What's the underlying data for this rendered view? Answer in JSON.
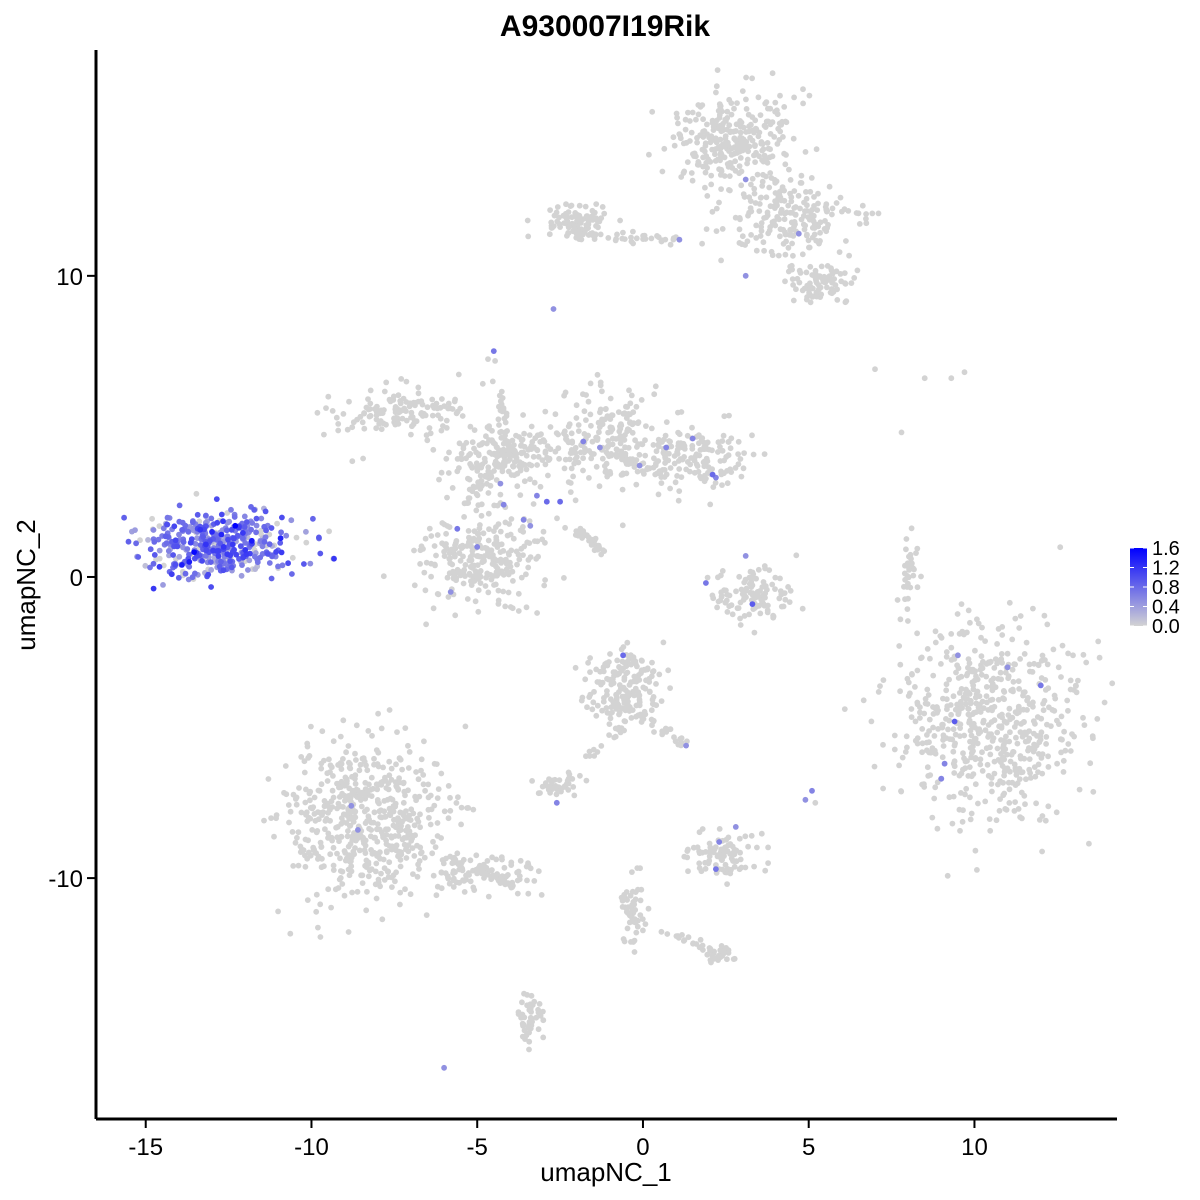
{
  "chart_data": {
    "type": "scatter",
    "title": "A930007I19Rik",
    "xlabel": "umapNC_1",
    "ylabel": "umapNC_2",
    "xlim": [
      -16.5,
      14.3
    ],
    "ylim": [
      -18.0,
      17.5
    ],
    "xticks": [
      -15,
      -10,
      -5,
      0,
      5,
      10
    ],
    "xtick_labels": [
      "-15",
      "-10",
      "-5",
      "0",
      "5",
      "10"
    ],
    "yticks": [
      10,
      0,
      -10
    ],
    "ytick_labels": [
      "10",
      "0",
      "-10"
    ],
    "color_scale": {
      "low": "#d3d3d3",
      "high": "#0000ff",
      "min": 0.0,
      "max": 1.6,
      "tick_values": [
        1.6,
        1.2,
        0.8,
        0.4,
        0.0
      ],
      "tick_labels": [
        "1.6",
        "1.2",
        "0.8",
        "0.4",
        "0.0"
      ]
    },
    "grid": false,
    "legend_position": "right",
    "clusters": [
      {
        "cx": -12.7,
        "cy": 1.1,
        "sx": 1.15,
        "sy": 0.55,
        "n": 440,
        "expr_frac": 0.88,
        "expr_mean": 0.7
      },
      {
        "cx": 2.7,
        "cy": 14.5,
        "sx": 0.9,
        "sy": 0.8,
        "n": 300,
        "expr_frac": 0.0,
        "expr_mean": 0
      },
      {
        "cx": 4.5,
        "cy": 12.0,
        "sx": 1.0,
        "sy": 0.6,
        "n": 200,
        "expr_frac": 0.0,
        "expr_mean": 0
      },
      {
        "cx": 5.3,
        "cy": 9.8,
        "sx": 0.5,
        "sy": 0.35,
        "n": 80,
        "expr_frac": 0.0,
        "expr_mean": 0
      },
      {
        "cx": -2.1,
        "cy": 11.8,
        "sx": 0.45,
        "sy": 0.3,
        "n": 90,
        "expr_frac": 0.0,
        "expr_mean": 0
      },
      {
        "cx": -7.3,
        "cy": 5.5,
        "sx": 0.9,
        "sy": 0.4,
        "n": 130,
        "expr_frac": 0.0,
        "expr_mean": 0
      },
      {
        "cx": -4.3,
        "cy": 4.0,
        "sx": 0.9,
        "sy": 0.6,
        "n": 190,
        "expr_frac": 0.0,
        "expr_mean": 0
      },
      {
        "cx": -1.2,
        "cy": 4.6,
        "sx": 1.1,
        "sy": 0.9,
        "n": 200,
        "expr_frac": 0.0,
        "expr_mean": 0
      },
      {
        "cx": 1.6,
        "cy": 3.9,
        "sx": 0.8,
        "sy": 0.55,
        "n": 140,
        "expr_frac": 0.0,
        "expr_mean": 0
      },
      {
        "cx": -4.9,
        "cy": 0.7,
        "sx": 0.9,
        "sy": 0.75,
        "n": 260,
        "expr_frac": 0.0,
        "expr_mean": 0
      },
      {
        "cx": 3.3,
        "cy": -0.7,
        "sx": 0.55,
        "sy": 0.45,
        "n": 110,
        "expr_frac": 0.0,
        "expr_mean": 0
      },
      {
        "cx": 8.1,
        "cy": 0.2,
        "sx": 0.15,
        "sy": 0.6,
        "n": 30,
        "expr_frac": 0.0,
        "expr_mean": 0
      },
      {
        "cx": 10.5,
        "cy": -4.8,
        "sx": 1.5,
        "sy": 1.55,
        "n": 600,
        "expr_frac": 0.0,
        "expr_mean": 0
      },
      {
        "cx": -0.5,
        "cy": -3.6,
        "sx": 0.55,
        "sy": 0.6,
        "n": 170,
        "expr_frac": 0.0,
        "expr_mean": 0
      },
      {
        "cx": -8.3,
        "cy": -8.0,
        "sx": 1.15,
        "sy": 1.35,
        "n": 560,
        "expr_frac": 0.0,
        "expr_mean": 0
      },
      {
        "cx": -4.6,
        "cy": -9.8,
        "sx": 0.8,
        "sy": 0.35,
        "n": 80,
        "expr_frac": 0.0,
        "expr_mean": 0
      },
      {
        "cx": -2.6,
        "cy": -6.9,
        "sx": 0.3,
        "sy": 0.2,
        "n": 40,
        "expr_frac": 0.0,
        "expr_mean": 0
      },
      {
        "cx": 2.4,
        "cy": -9.3,
        "sx": 0.5,
        "sy": 0.4,
        "n": 90,
        "expr_frac": 0.0,
        "expr_mean": 0
      },
      {
        "cx": 2.3,
        "cy": -12.5,
        "sx": 0.3,
        "sy": 0.15,
        "n": 30,
        "expr_frac": 0.0,
        "expr_mean": 0
      },
      {
        "cx": -3.4,
        "cy": -14.6,
        "sx": 0.18,
        "sy": 0.55,
        "n": 45,
        "expr_frac": 0.0,
        "expr_mean": 0
      },
      {
        "cx": -0.3,
        "cy": -11.2,
        "sx": 0.2,
        "sy": 0.6,
        "n": 35,
        "expr_frac": 0.0,
        "expr_mean": 0
      }
    ],
    "bridges": [
      {
        "from": [
          -2.2,
          11.4
        ],
        "to": [
          1.0,
          11.2
        ],
        "n": 40
      },
      {
        "from": [
          -2.0,
          1.6
        ],
        "to": [
          -1.2,
          0.8
        ],
        "n": 35
      },
      {
        "from": [
          -4.5,
          7.3
        ],
        "to": [
          -4.0,
          3.8
        ],
        "n": 25
      },
      {
        "from": [
          -5.4,
          2.5
        ],
        "to": [
          -4.0,
          4.2
        ],
        "n": 35
      },
      {
        "from": [
          -0.5,
          -4.2
        ],
        "to": [
          1.3,
          -5.6
        ],
        "n": 30
      },
      {
        "from": [
          -6.0,
          -9.2
        ],
        "to": [
          -3.8,
          -10.3
        ],
        "n": 40
      },
      {
        "from": [
          -0.6,
          -10.6
        ],
        "to": [
          -0.1,
          -11.7
        ],
        "n": 20
      },
      {
        "from": [
          -0.3,
          -4.5
        ],
        "to": [
          -1.6,
          -6.0
        ],
        "n": 20
      },
      {
        "from": [
          0.6,
          -11.8
        ],
        "to": [
          2.2,
          -12.4
        ],
        "n": 18
      },
      {
        "from": [
          -1.3,
          4.2
        ],
        "to": [
          0.8,
          3.4
        ],
        "n": 40
      }
    ],
    "singletons": [
      {
        "x": -2.7,
        "y": 8.9,
        "value": 0.5
      },
      {
        "x": -4.5,
        "y": 7.5,
        "value": 0.7
      },
      {
        "x": -6.0,
        "y": -16.3,
        "value": 0.5
      },
      {
        "x": 7.0,
        "y": 6.9,
        "value": 0
      },
      {
        "x": 8.5,
        "y": 6.6,
        "value": 0
      },
      {
        "x": 9.3,
        "y": 6.6,
        "value": 0
      },
      {
        "x": 9.7,
        "y": 6.8,
        "value": 0
      },
      {
        "x": 7.8,
        "y": 4.8,
        "value": 0
      },
      {
        "x": 5.1,
        "y": -7.1,
        "value": 0.6
      },
      {
        "x": 4.9,
        "y": -7.4,
        "value": 0.5
      },
      {
        "x": 5.2,
        "y": -7.5,
        "value": 0
      }
    ],
    "expressed_points": [
      {
        "x": 3.1,
        "y": 13.2,
        "value": 0.5
      },
      {
        "x": 4.7,
        "y": 11.4,
        "value": 0.5
      },
      {
        "x": 1.1,
        "y": 11.2,
        "value": 0.5
      },
      {
        "x": 3.1,
        "y": 10.0,
        "value": 0.5
      },
      {
        "x": -1.8,
        "y": 4.5,
        "value": 0.6
      },
      {
        "x": -1.3,
        "y": 4.3,
        "value": 0.5
      },
      {
        "x": 0.7,
        "y": 4.3,
        "value": 0.6
      },
      {
        "x": 1.5,
        "y": 4.6,
        "value": 0.6
      },
      {
        "x": 2.1,
        "y": 3.4,
        "value": 0.8
      },
      {
        "x": 2.2,
        "y": 3.3,
        "value": 0.6
      },
      {
        "x": -4.3,
        "y": 3.1,
        "value": 0.5
      },
      {
        "x": -3.2,
        "y": 2.7,
        "value": 0.6
      },
      {
        "x": -2.9,
        "y": 2.5,
        "value": 0.8
      },
      {
        "x": -2.5,
        "y": 2.5,
        "value": 0.8
      },
      {
        "x": -3.6,
        "y": 1.9,
        "value": 0.6
      },
      {
        "x": -4.2,
        "y": 2.4,
        "value": 0.6
      },
      {
        "x": -5.6,
        "y": 1.6,
        "value": 0.7
      },
      {
        "x": -5.0,
        "y": 1.0,
        "value": 0.6
      },
      {
        "x": -3.4,
        "y": 1.7,
        "value": 0.5
      },
      {
        "x": -5.8,
        "y": -0.5,
        "value": 0.5
      },
      {
        "x": -0.1,
        "y": 3.7,
        "value": 0.5
      },
      {
        "x": 1.9,
        "y": -0.2,
        "value": 0.7
      },
      {
        "x": 3.3,
        "y": -0.9,
        "value": 0.9
      },
      {
        "x": 3.1,
        "y": 0.7,
        "value": 0.5
      },
      {
        "x": -0.6,
        "y": -2.6,
        "value": 0.8
      },
      {
        "x": 1.3,
        "y": -5.6,
        "value": 0.5
      },
      {
        "x": 9.5,
        "y": -2.6,
        "value": 0.5
      },
      {
        "x": 11.0,
        "y": -3.0,
        "value": 0.5
      },
      {
        "x": 12.0,
        "y": -3.6,
        "value": 0.7
      },
      {
        "x": 9.4,
        "y": -4.8,
        "value": 0.9
      },
      {
        "x": 9.1,
        "y": -6.2,
        "value": 0.6
      },
      {
        "x": 9.0,
        "y": -6.7,
        "value": 0.6
      },
      {
        "x": -8.8,
        "y": -7.6,
        "value": 0.5
      },
      {
        "x": -8.6,
        "y": -8.4,
        "value": 0.5
      },
      {
        "x": -2.6,
        "y": -7.5,
        "value": 0.6
      },
      {
        "x": 2.3,
        "y": -8.8,
        "value": 0.6
      },
      {
        "x": 2.8,
        "y": -8.3,
        "value": 0.5
      },
      {
        "x": 2.2,
        "y": -9.7,
        "value": 0.7
      },
      {
        "x": -12.3,
        "y": 1.7,
        "value": 1.6
      },
      {
        "x": -13.0,
        "y": 1.5,
        "value": 1.3
      },
      {
        "x": -11.8,
        "y": 1.2,
        "value": 1.4
      },
      {
        "x": -12.0,
        "y": 0.9,
        "value": 1.2
      }
    ]
  }
}
